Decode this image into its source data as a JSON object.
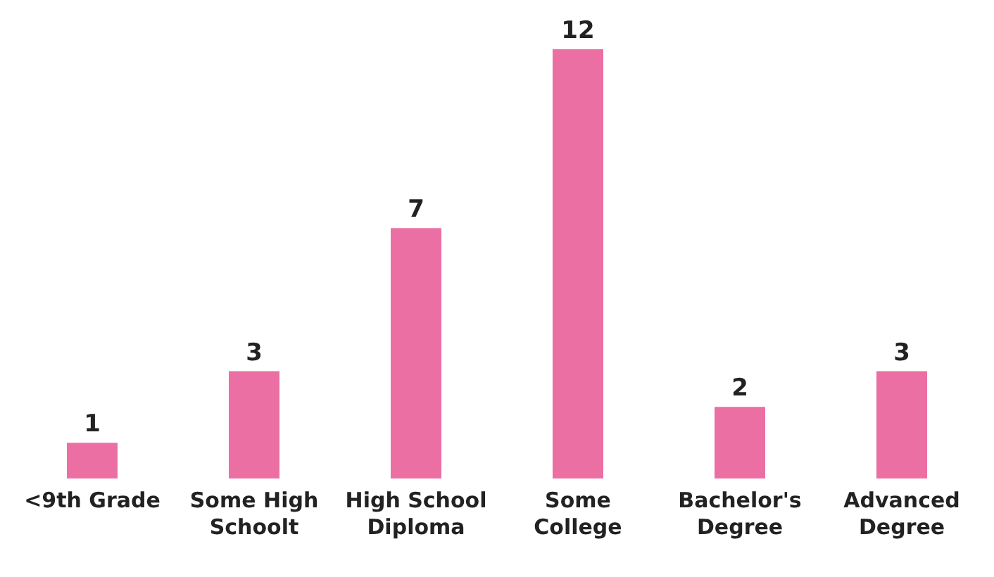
{
  "chart_data": {
    "type": "bar",
    "categories": [
      "<9th Grade",
      "Some High Schoolt",
      "High School Diploma",
      "Some College",
      "Bachelor's Degree",
      "Advanced Degree"
    ],
    "values": [
      1,
      3,
      7,
      12,
      2,
      3
    ],
    "color": "#ec6fa3",
    "data_labels": true
  }
}
